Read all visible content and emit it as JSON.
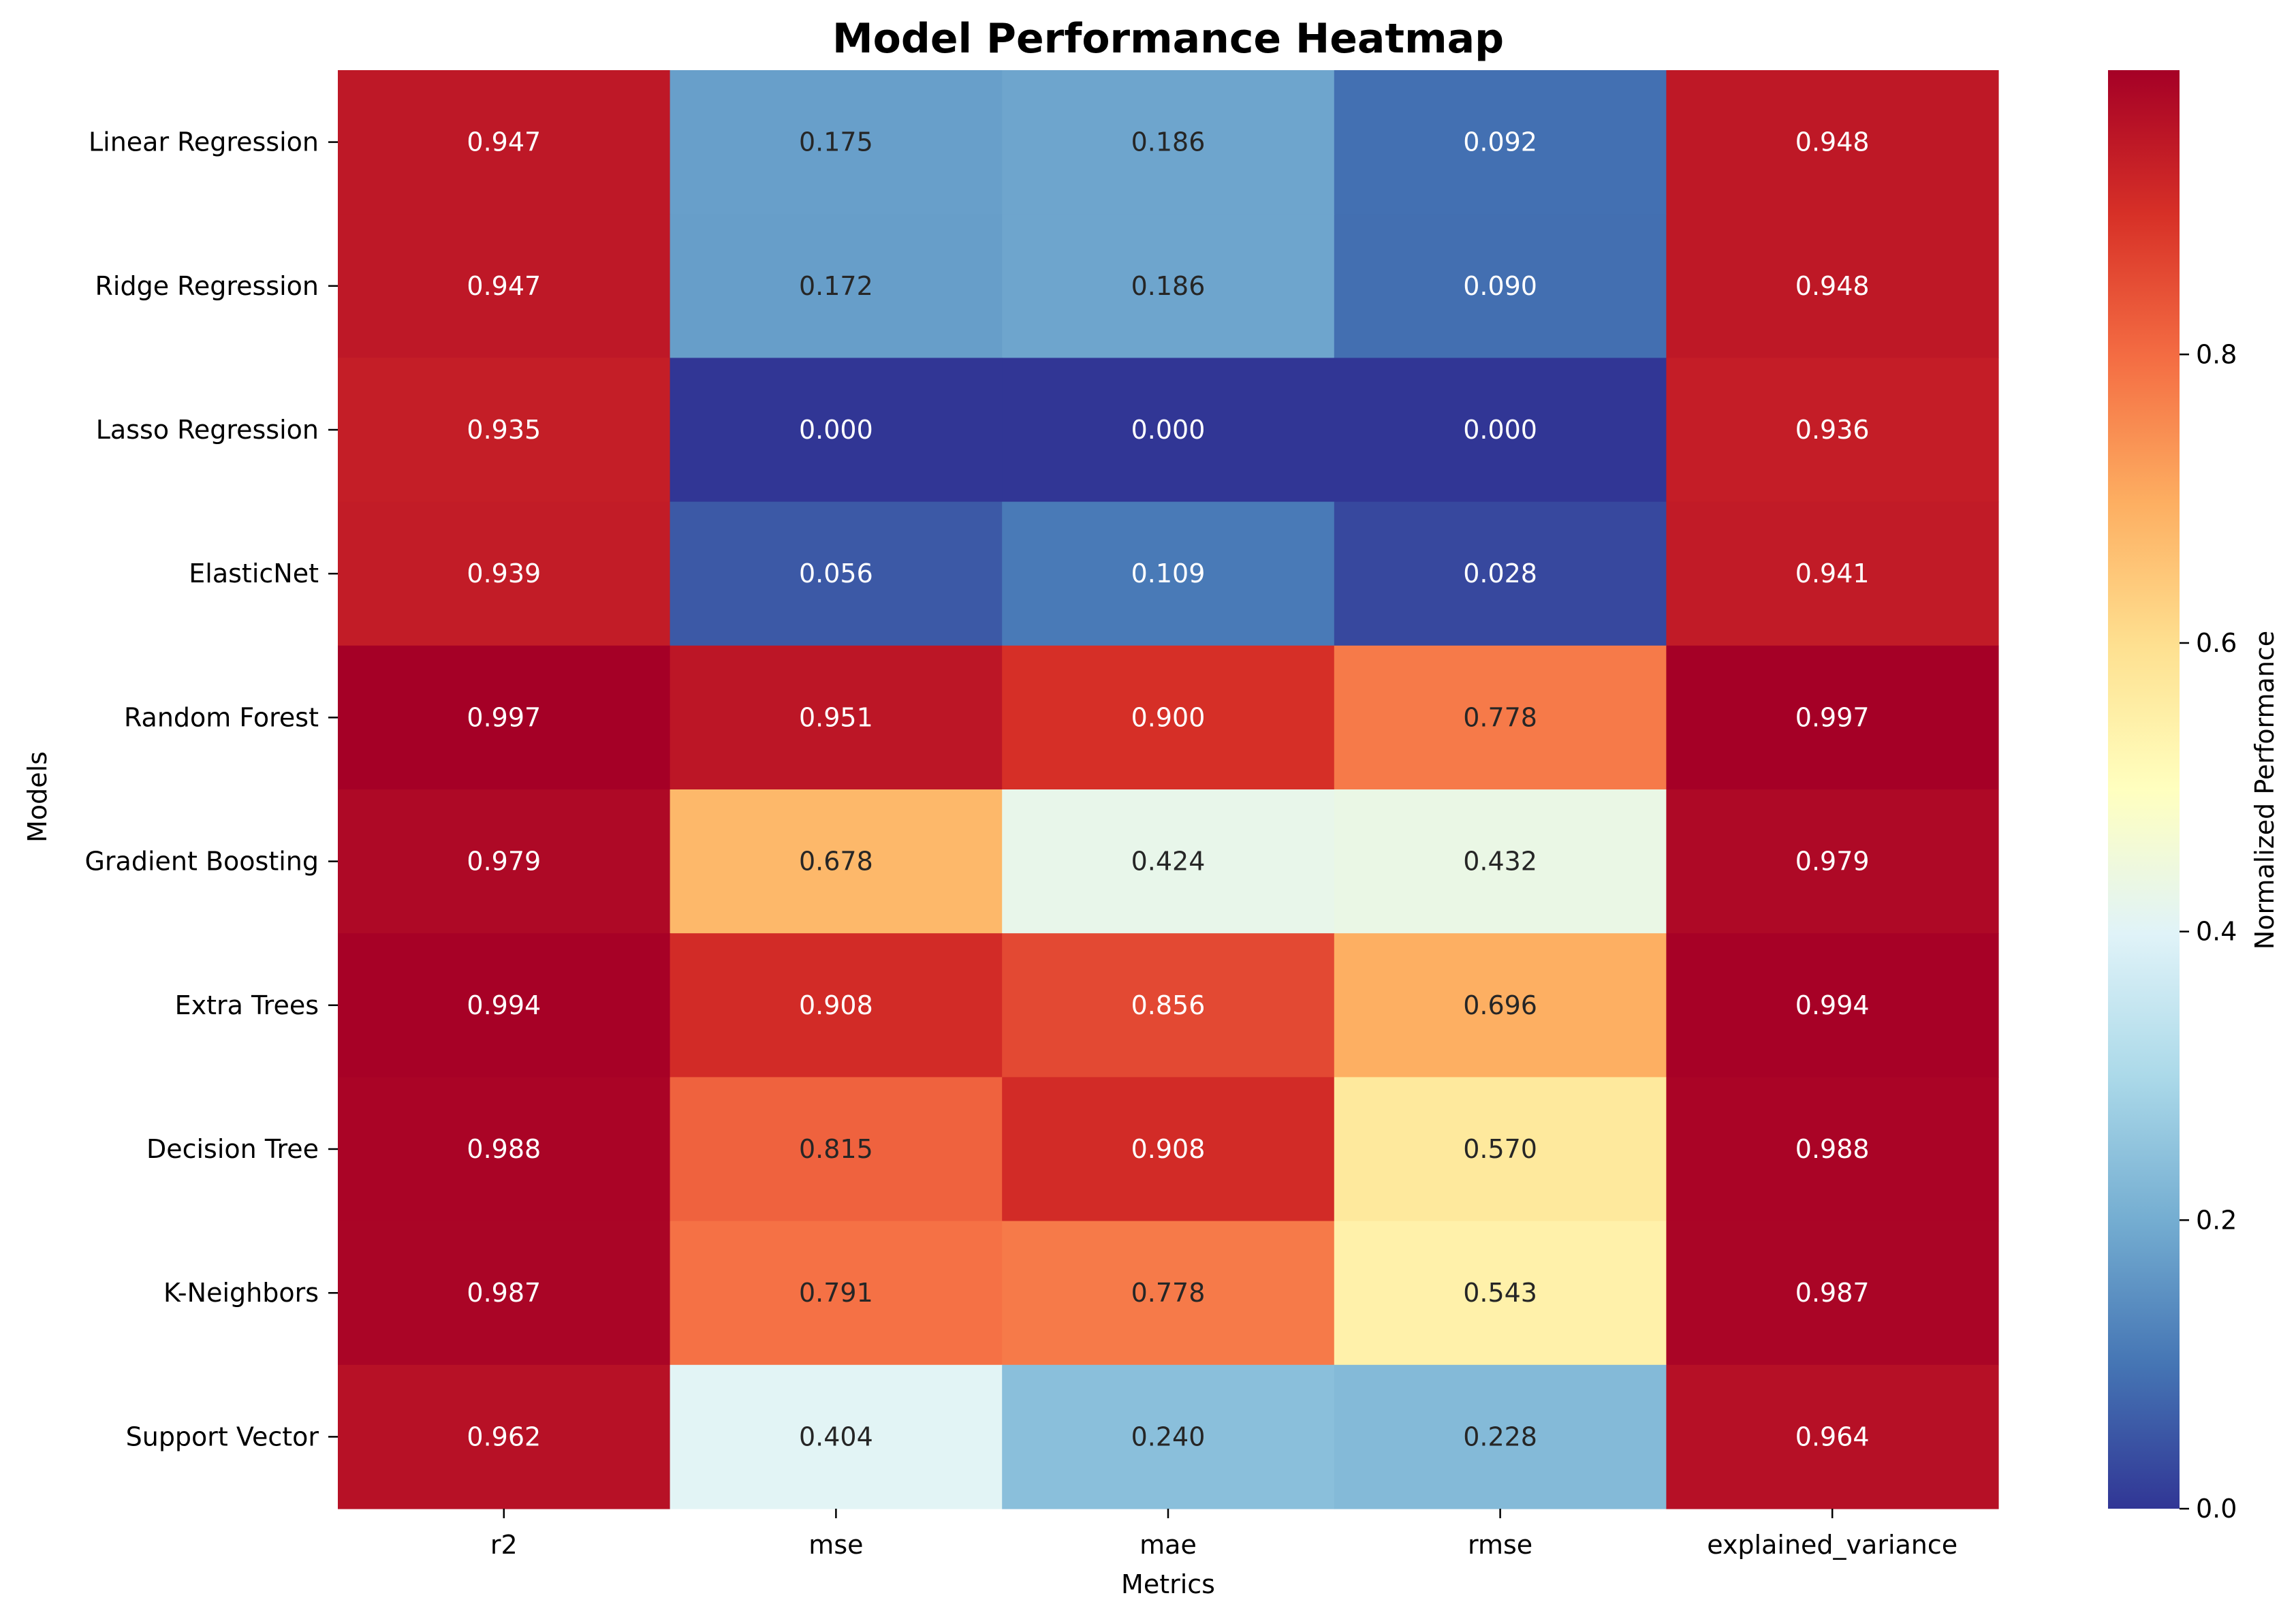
{
  "chart_data": {
    "type": "heatmap",
    "title": "Model Performance Heatmap",
    "xlabel": "Metrics",
    "ylabel": "Models",
    "columns": [
      "r2",
      "mse",
      "mae",
      "rmse",
      "explained_variance"
    ],
    "rows": [
      "Linear Regression",
      "Ridge Regression",
      "Lasso Regression",
      "ElasticNet",
      "Random Forest",
      "Gradient Boosting",
      "Extra Trees",
      "Decision Tree",
      "K-Neighbors",
      "Support Vector"
    ],
    "values": [
      [
        0.947,
        0.175,
        0.186,
        0.092,
        0.948
      ],
      [
        0.947,
        0.172,
        0.186,
        0.09,
        0.948
      ],
      [
        0.935,
        0.0,
        0.0,
        0.0,
        0.936
      ],
      [
        0.939,
        0.056,
        0.109,
        0.028,
        0.941
      ],
      [
        0.997,
        0.951,
        0.9,
        0.778,
        0.997
      ],
      [
        0.979,
        0.678,
        0.424,
        0.432,
        0.979
      ],
      [
        0.994,
        0.908,
        0.856,
        0.696,
        0.994
      ],
      [
        0.988,
        0.815,
        0.908,
        0.57,
        0.988
      ],
      [
        0.987,
        0.791,
        0.778,
        0.543,
        0.987
      ],
      [
        0.962,
        0.404,
        0.24,
        0.228,
        0.964
      ]
    ],
    "value_format": "3 decimals",
    "colormap": "RdYlBu_r",
    "colormap_stops": [
      "#313695",
      "#4575b4",
      "#74add1",
      "#abd9e9",
      "#e0f3f8",
      "#ffffbf",
      "#fee090",
      "#fdae61",
      "#f46d43",
      "#d73027",
      "#a50026"
    ],
    "value_range": [
      0.0,
      0.997
    ],
    "colorbar": {
      "label": "Normalized Performance",
      "ticks": [
        "0.0",
        "0.2",
        "0.4",
        "0.6",
        "0.8"
      ],
      "tick_values": [
        0.0,
        0.2,
        0.4,
        0.6,
        0.8
      ]
    },
    "grid": false,
    "legend": "colorbar-right"
  }
}
